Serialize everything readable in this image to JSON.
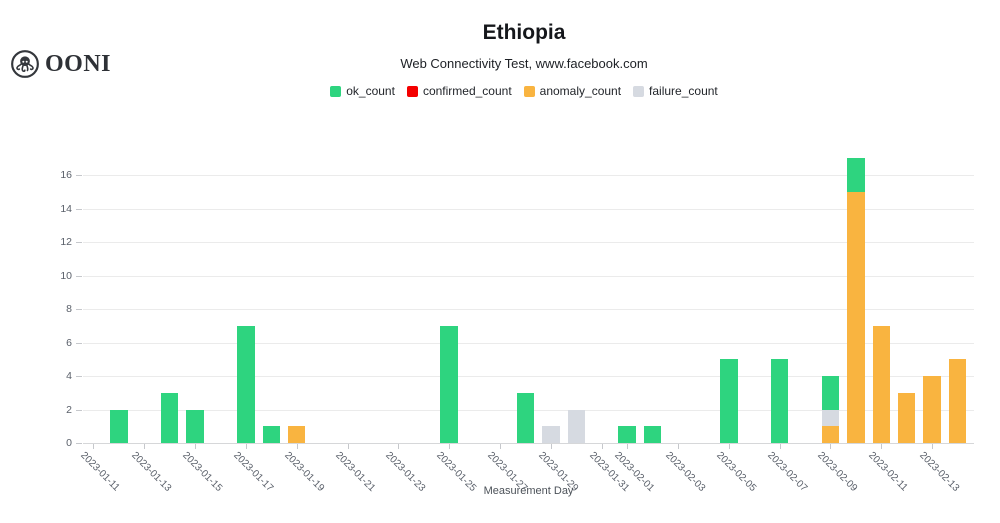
{
  "header": {
    "logo_text": "OONI",
    "title": "Ethiopia",
    "subtitle": "Web Connectivity Test, www.facebook.com"
  },
  "legend": {
    "items": [
      {
        "name": "ok_count",
        "label": "ok_count",
        "color": "#2ed47f"
      },
      {
        "name": "confirmed_count",
        "label": "confirmed_count",
        "color": "#f40000"
      },
      {
        "name": "anomaly_count",
        "label": "anomaly_count",
        "color": "#f9b440"
      },
      {
        "name": "failure_count",
        "label": "failure_count",
        "color": "#d6dae1"
      }
    ]
  },
  "chart_data": {
    "type": "bar",
    "stacked": true,
    "title": "Ethiopia",
    "subtitle": "Web Connectivity Test, www.facebook.com",
    "xlabel": "Measurement Day",
    "ylabel": "",
    "ylim": [
      0,
      17
    ],
    "grid": true,
    "legend_position": "top",
    "y_ticks": [
      0,
      2,
      4,
      6,
      8,
      10,
      12,
      14,
      16
    ],
    "x_tick_labels": [
      "2023-01-11",
      "2023-01-13",
      "2023-01-15",
      "2023-01-17",
      "2023-01-19",
      "2023-01-21",
      "2023-01-23",
      "2023-01-25",
      "2023-01-27",
      "2023-01-29",
      "2023-01-31",
      "2023-02-01",
      "2023-02-03",
      "2023-02-05",
      "2023-02-07",
      "2023-02-09",
      "2023-02-11",
      "2023-02-13"
    ],
    "stack_order": [
      "confirmed_count",
      "anomaly_count",
      "failure_count",
      "ok_count"
    ],
    "series_colors": {
      "ok_count": "#2ed47f",
      "confirmed_count": "#f40000",
      "anomaly_count": "#f9b440",
      "failure_count": "#d6dae1"
    },
    "points": [
      {
        "date": "2023-01-12",
        "ok_count": 2,
        "confirmed_count": 0,
        "anomaly_count": 0,
        "failure_count": 0
      },
      {
        "date": "2023-01-14",
        "ok_count": 3,
        "confirmed_count": 0,
        "anomaly_count": 0,
        "failure_count": 0
      },
      {
        "date": "2023-01-15",
        "ok_count": 2,
        "confirmed_count": 0,
        "anomaly_count": 0,
        "failure_count": 0
      },
      {
        "date": "2023-01-17",
        "ok_count": 7,
        "confirmed_count": 0,
        "anomaly_count": 0,
        "failure_count": 0
      },
      {
        "date": "2023-01-18",
        "ok_count": 1,
        "confirmed_count": 0,
        "anomaly_count": 0,
        "failure_count": 0
      },
      {
        "date": "2023-01-19",
        "ok_count": 0,
        "confirmed_count": 0,
        "anomaly_count": 1,
        "failure_count": 0
      },
      {
        "date": "2023-01-25",
        "ok_count": 7,
        "confirmed_count": 0,
        "anomaly_count": 0,
        "failure_count": 0
      },
      {
        "date": "2023-01-28",
        "ok_count": 3,
        "confirmed_count": 0,
        "anomaly_count": 0,
        "failure_count": 0
      },
      {
        "date": "2023-01-29",
        "ok_count": 0,
        "confirmed_count": 0,
        "anomaly_count": 0,
        "failure_count": 1
      },
      {
        "date": "2023-01-30",
        "ok_count": 0,
        "confirmed_count": 0,
        "anomaly_count": 0,
        "failure_count": 2
      },
      {
        "date": "2023-02-01",
        "ok_count": 1,
        "confirmed_count": 0,
        "anomaly_count": 0,
        "failure_count": 0
      },
      {
        "date": "2023-02-02",
        "ok_count": 1,
        "confirmed_count": 0,
        "anomaly_count": 0,
        "failure_count": 0
      },
      {
        "date": "2023-02-05",
        "ok_count": 5,
        "confirmed_count": 0,
        "anomaly_count": 0,
        "failure_count": 0
      },
      {
        "date": "2023-02-07",
        "ok_count": 5,
        "confirmed_count": 0,
        "anomaly_count": 0,
        "failure_count": 0
      },
      {
        "date": "2023-02-09",
        "ok_count": 2,
        "confirmed_count": 0,
        "anomaly_count": 1,
        "failure_count": 1
      },
      {
        "date": "2023-02-10",
        "ok_count": 2,
        "confirmed_count": 0,
        "anomaly_count": 15,
        "failure_count": 0
      },
      {
        "date": "2023-02-11",
        "ok_count": 0,
        "confirmed_count": 0,
        "anomaly_count": 7,
        "failure_count": 0
      },
      {
        "date": "2023-02-12",
        "ok_count": 0,
        "confirmed_count": 0,
        "anomaly_count": 3,
        "failure_count": 0
      },
      {
        "date": "2023-02-13",
        "ok_count": 0,
        "confirmed_count": 0,
        "anomaly_count": 4,
        "failure_count": 0
      },
      {
        "date": "2023-02-14",
        "ok_count": 0,
        "confirmed_count": 0,
        "anomaly_count": 5,
        "failure_count": 0
      }
    ]
  }
}
